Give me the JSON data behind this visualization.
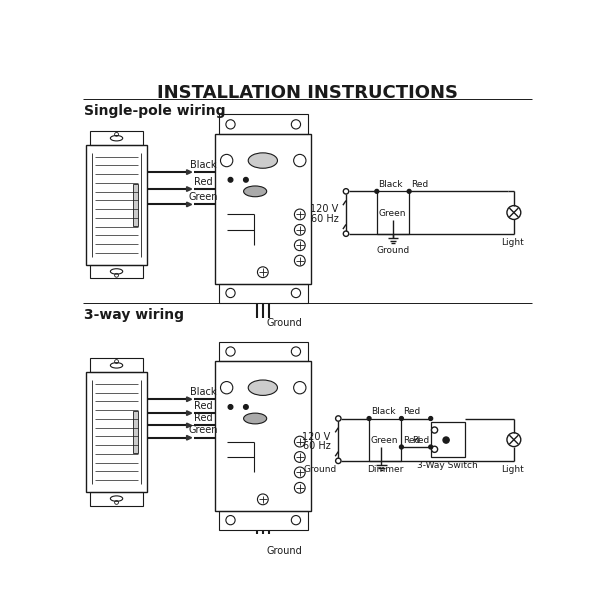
{
  "title": "INSTALLATION INSTRUCTIONS",
  "section1_label": "Single-pole wiring",
  "section2_label": "3-way wiring",
  "bg_color": "#ffffff",
  "line_color": "#1a1a1a",
  "text_color": "#1a1a1a",
  "gray": "#888888",
  "light_gray": "#cccccc",
  "mid_gray": "#aaaaaa"
}
